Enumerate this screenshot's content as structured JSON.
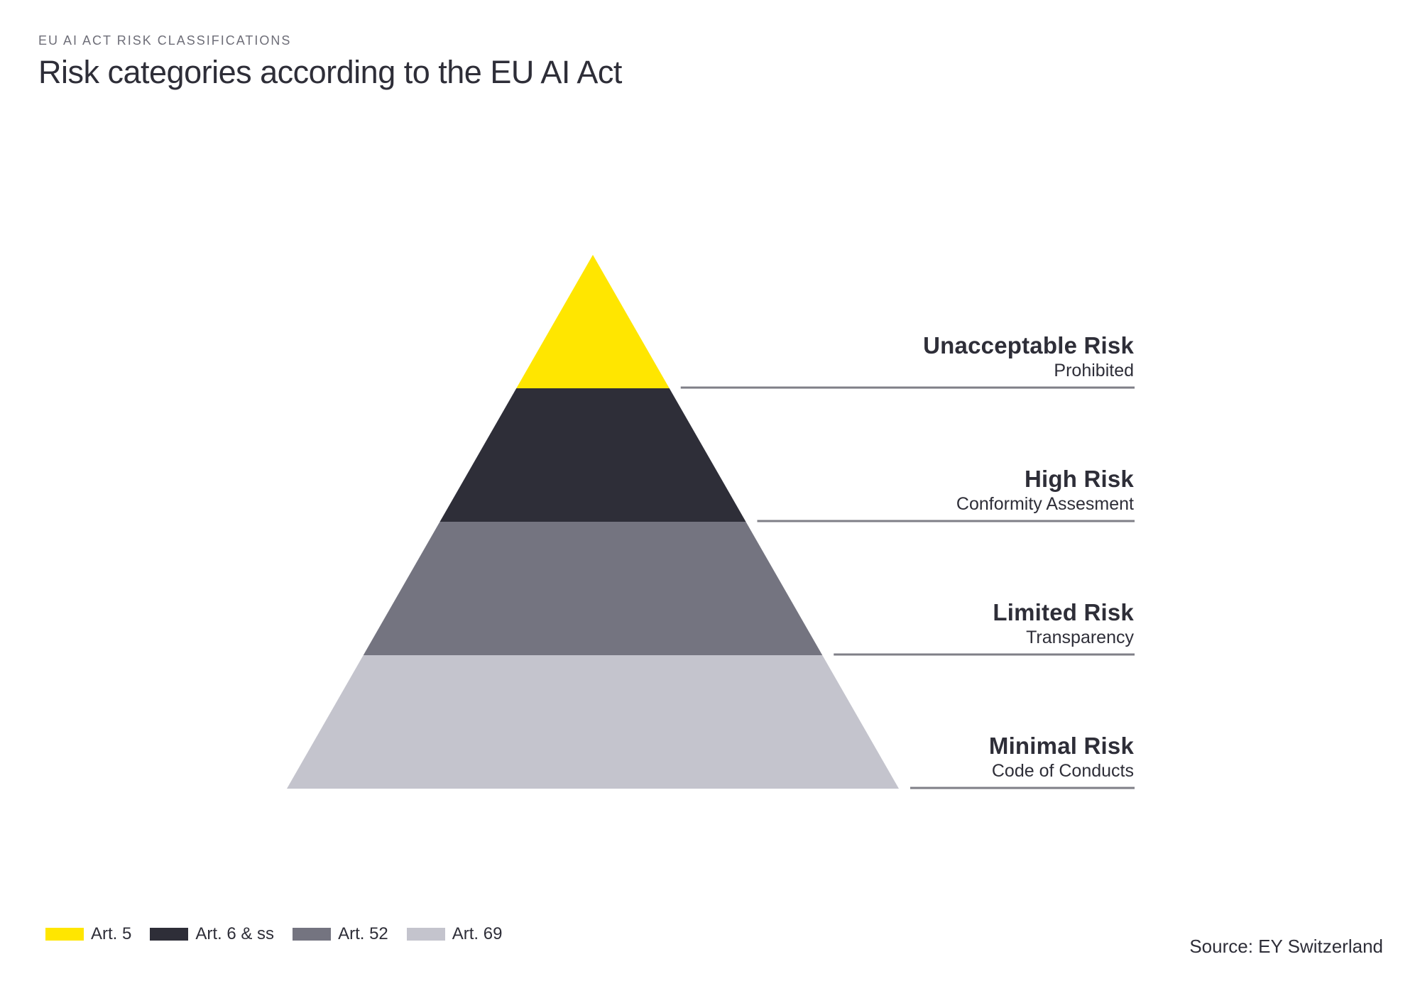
{
  "header": {
    "kicker": "EU AI ACT RISK CLASSIFICATIONS",
    "title": "Risk categories according to the EU AI Act"
  },
  "pyramid": {
    "type": "pyramid",
    "levels": [
      {
        "name": "Unacceptable Risk",
        "description": "Prohibited",
        "article": "Art. 5",
        "color": "#FFE600"
      },
      {
        "name": "High Risk",
        "description": "Conformity Assesment",
        "article": "Art. 6 & ss",
        "color": "#2E2E38"
      },
      {
        "name": "Limited Risk",
        "description": "Transparency",
        "article": "Art. 52",
        "color": "#747480"
      },
      {
        "name": "Minimal Risk",
        "description": "Code of Conducts",
        "article": "Art. 69",
        "color": "#C4C4CD"
      }
    ],
    "connector_color": "#7F7F87"
  },
  "legend": {
    "items": [
      {
        "label": "Art. 5",
        "color": "#FFE600"
      },
      {
        "label": "Art. 6 & ss",
        "color": "#2E2E38"
      },
      {
        "label": "Art. 52",
        "color": "#747480"
      },
      {
        "label": "Art. 69",
        "color": "#C4C4CD"
      }
    ]
  },
  "source": {
    "label": "Source: EY Switzerland"
  },
  "colors": {
    "accent_yellow": "#FFE600",
    "dark": "#2E2E38",
    "mid_gray": "#747480",
    "light_gray": "#C4C4CD",
    "kicker_gray": "#6E6E78",
    "line_gray": "#7F7F87",
    "background": "#FFFFFF"
  }
}
